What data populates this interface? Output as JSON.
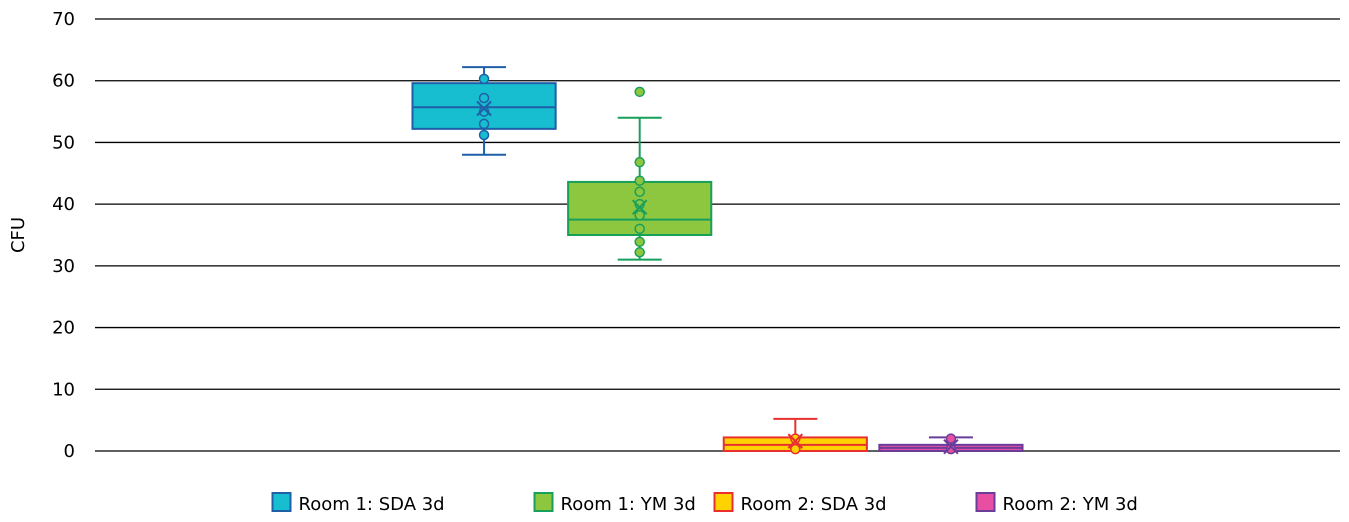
{
  "chart_data": {
    "type": "box",
    "title": "",
    "xlabel": "",
    "ylabel": "CFU",
    "ylim": [
      0,
      70
    ],
    "yticks": [
      0,
      10,
      20,
      30,
      40,
      50,
      60,
      70
    ],
    "grid": true,
    "legend_position": "bottom",
    "series": [
      {
        "name": "Room 1: SDA 3d",
        "fill": "#17becf",
        "stroke": "#1f5fa8",
        "whisker_low": 48,
        "q1": 52.2,
        "median": 55.7,
        "q3": 59.6,
        "whisker_high": 62.2,
        "mean": 55.5,
        "points": [
          60.3,
          57.2,
          55.0,
          53.0,
          51.2
        ]
      },
      {
        "name": "Room 1: YM 3d",
        "fill": "#8dc63f",
        "stroke": "#18a05a",
        "whisker_low": 31.0,
        "q1": 35.0,
        "median": 37.5,
        "q3": 43.6,
        "whisker_high": 54.0,
        "mean": 39.5,
        "points": [
          58.2,
          46.8,
          43.8,
          42.0,
          40.0,
          38.2,
          36.0,
          33.9,
          32.2
        ]
      },
      {
        "name": "Room 2: SDA 3d",
        "fill": "#ffd200",
        "stroke": "#e8312f",
        "whisker_low": 0,
        "q1": 0,
        "median": 1.0,
        "q3": 2.2,
        "whisker_high": 5.2,
        "mean": 1.6,
        "points": [
          2.0,
          0.3
        ]
      },
      {
        "name": "Room 2: YM 3d",
        "fill": "#e84fa3",
        "stroke": "#6a3d9a",
        "whisker_low": 0,
        "q1": 0,
        "median": 0.5,
        "q3": 1.0,
        "whisker_high": 2.2,
        "mean": 0.7,
        "points": [
          2.0,
          0.3
        ]
      }
    ]
  }
}
